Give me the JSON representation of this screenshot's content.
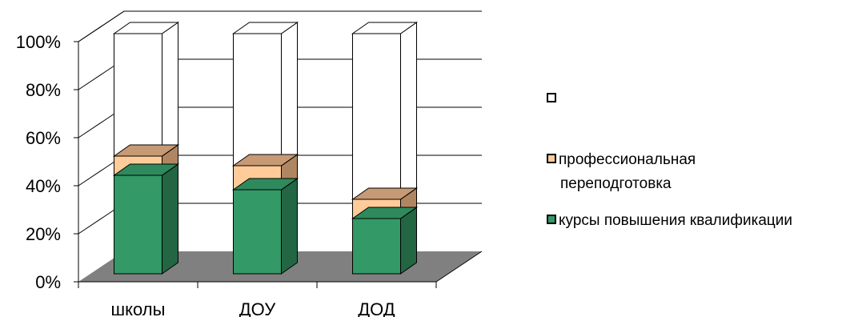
{
  "chart_data": {
    "type": "bar",
    "stacked": true,
    "three_d": true,
    "categories": [
      "школы",
      "ДОУ",
      "ДОД"
    ],
    "series": [
      {
        "name": "курсы повышения квалификации",
        "values": [
          41,
          35,
          23
        ],
        "color": "#339966",
        "top_color": "#2e8a5c",
        "side_color": "#226644"
      },
      {
        "name": "профессиональная переподготовка",
        "name_lines": [
          "профессиональная",
          "переподготовка"
        ],
        "values": [
          8,
          10,
          8
        ],
        "color": "#ffcc99",
        "top_color": "#c69a74",
        "side_color": "#b08662"
      },
      {
        "name": "",
        "values": [
          51,
          55,
          69
        ],
        "color": "#ffffff",
        "top_color": "#ffffff",
        "side_color": "#ffffff"
      }
    ],
    "y_ticks": [
      "0%",
      "20%",
      "40%",
      "60%",
      "80%",
      "100%"
    ],
    "ylim": [
      0,
      100
    ],
    "y_format": "percent",
    "grid": true,
    "floor_color": "#808080",
    "legend_position": "right",
    "title": "",
    "xlabel": "",
    "ylabel": ""
  }
}
